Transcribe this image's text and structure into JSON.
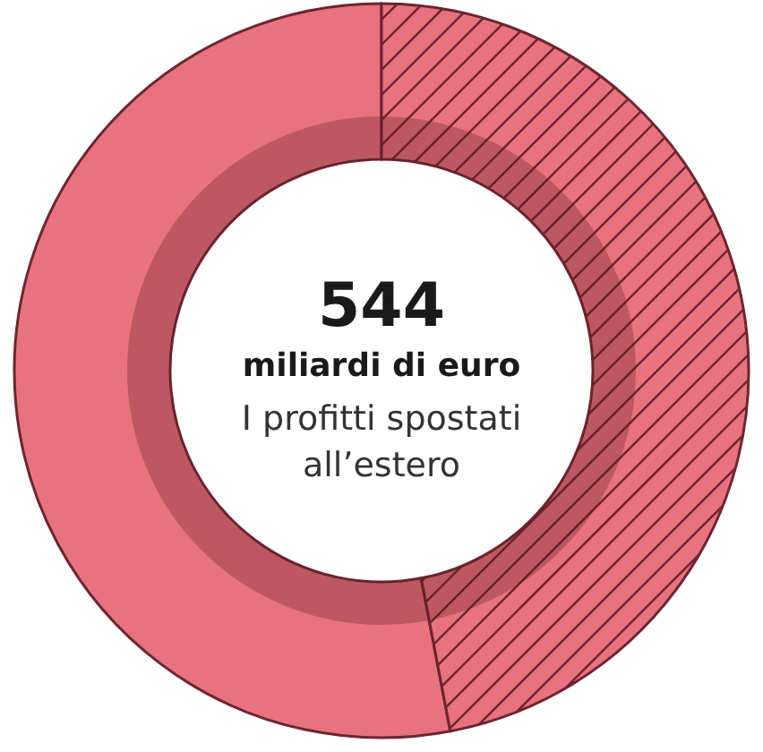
{
  "chart_data": {
    "type": "donut",
    "title": "544",
    "subtitle": "miliardi di euro",
    "annotations": [
      "I profitti spostati all’estero"
    ],
    "categories": [
      null,
      null
    ],
    "values": [
      53,
      47
    ],
    "colors": [
      "#e8737f",
      "#e8737f"
    ]
  }
}
